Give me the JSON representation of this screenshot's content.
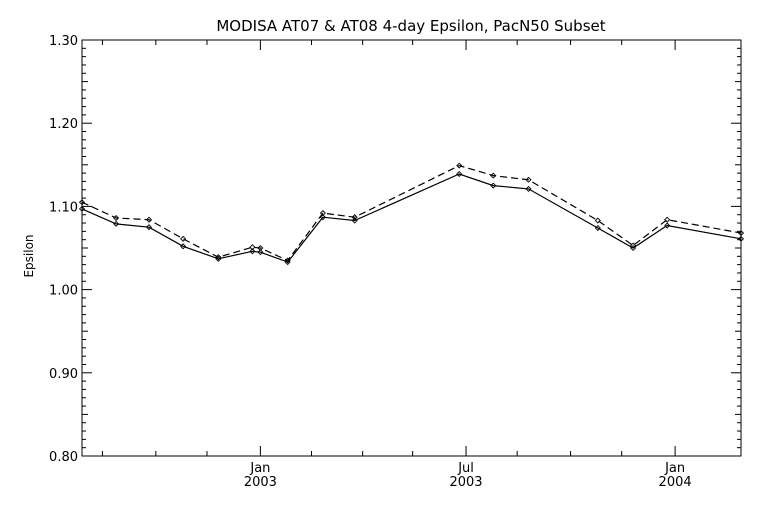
{
  "chart_data": {
    "type": "line",
    "title": "MODISA AT07 & AT08 4-day Epsilon, PacN50 Subset",
    "xlabel": "",
    "ylabel": "Epsilon",
    "xlim": [
      "2002-07-28",
      "2004-02-28"
    ],
    "ylim": [
      0.8,
      1.3
    ],
    "yticks": [
      "0.80",
      "0.90",
      "1.00",
      "1.10",
      "1.20",
      "1.30"
    ],
    "xticks": [
      {
        "date": "2003-01-01",
        "label1": "Jan",
        "label2": "2003"
      },
      {
        "date": "2003-07-01",
        "label1": "Jul",
        "label2": "2003"
      },
      {
        "date": "2004-01-01",
        "label1": "Jan",
        "label2": "2004"
      }
    ],
    "minor_xticks": [
      "2002-08-15",
      "2002-10-01",
      "2002-11-15",
      "2003-02-15",
      "2003-04-01",
      "2003-05-15",
      "2003-08-15",
      "2003-10-01",
      "2003-11-15"
    ],
    "grid": false,
    "series": [
      {
        "style": "solid",
        "points": [
          {
            "x": "2002-07-28",
            "y": 1.097
          },
          {
            "x": "2002-08-27",
            "y": 1.079
          },
          {
            "x": "2002-09-25",
            "y": 1.075
          },
          {
            "x": "2002-10-25",
            "y": 1.052
          },
          {
            "x": "2002-11-25",
            "y": 1.037
          },
          {
            "x": "2002-12-25",
            "y": 1.046
          },
          {
            "x": "2003-01-01",
            "y": 1.045
          },
          {
            "x": "2003-01-25",
            "y": 1.033
          },
          {
            "x": "2003-02-25",
            "y": 1.087
          },
          {
            "x": "2003-03-25",
            "y": 1.083
          },
          {
            "x": "2003-06-25",
            "y": 1.139
          },
          {
            "x": "2003-07-25",
            "y": 1.125
          },
          {
            "x": "2003-08-25",
            "y": 1.121
          },
          {
            "x": "2003-10-25",
            "y": 1.074
          },
          {
            "x": "2003-11-25",
            "y": 1.05
          },
          {
            "x": "2003-12-25",
            "y": 1.077
          },
          {
            "x": "2004-02-28",
            "y": 1.061
          }
        ]
      },
      {
        "style": "dashed",
        "points": [
          {
            "x": "2002-07-28",
            "y": 1.105
          },
          {
            "x": "2002-08-27",
            "y": 1.086
          },
          {
            "x": "2002-09-25",
            "y": 1.084
          },
          {
            "x": "2002-10-25",
            "y": 1.061
          },
          {
            "x": "2002-11-25",
            "y": 1.039
          },
          {
            "x": "2002-12-25",
            "y": 1.051
          },
          {
            "x": "2003-01-01",
            "y": 1.05
          },
          {
            "x": "2003-01-25",
            "y": 1.035
          },
          {
            "x": "2003-02-25",
            "y": 1.092
          },
          {
            "x": "2003-03-25",
            "y": 1.087
          },
          {
            "x": "2003-06-25",
            "y": 1.149
          },
          {
            "x": "2003-07-25",
            "y": 1.137
          },
          {
            "x": "2003-08-25",
            "y": 1.132
          },
          {
            "x": "2003-10-25",
            "y": 1.083
          },
          {
            "x": "2003-11-25",
            "y": 1.053
          },
          {
            "x": "2003-12-25",
            "y": 1.084
          },
          {
            "x": "2004-02-28",
            "y": 1.068
          }
        ]
      }
    ]
  }
}
